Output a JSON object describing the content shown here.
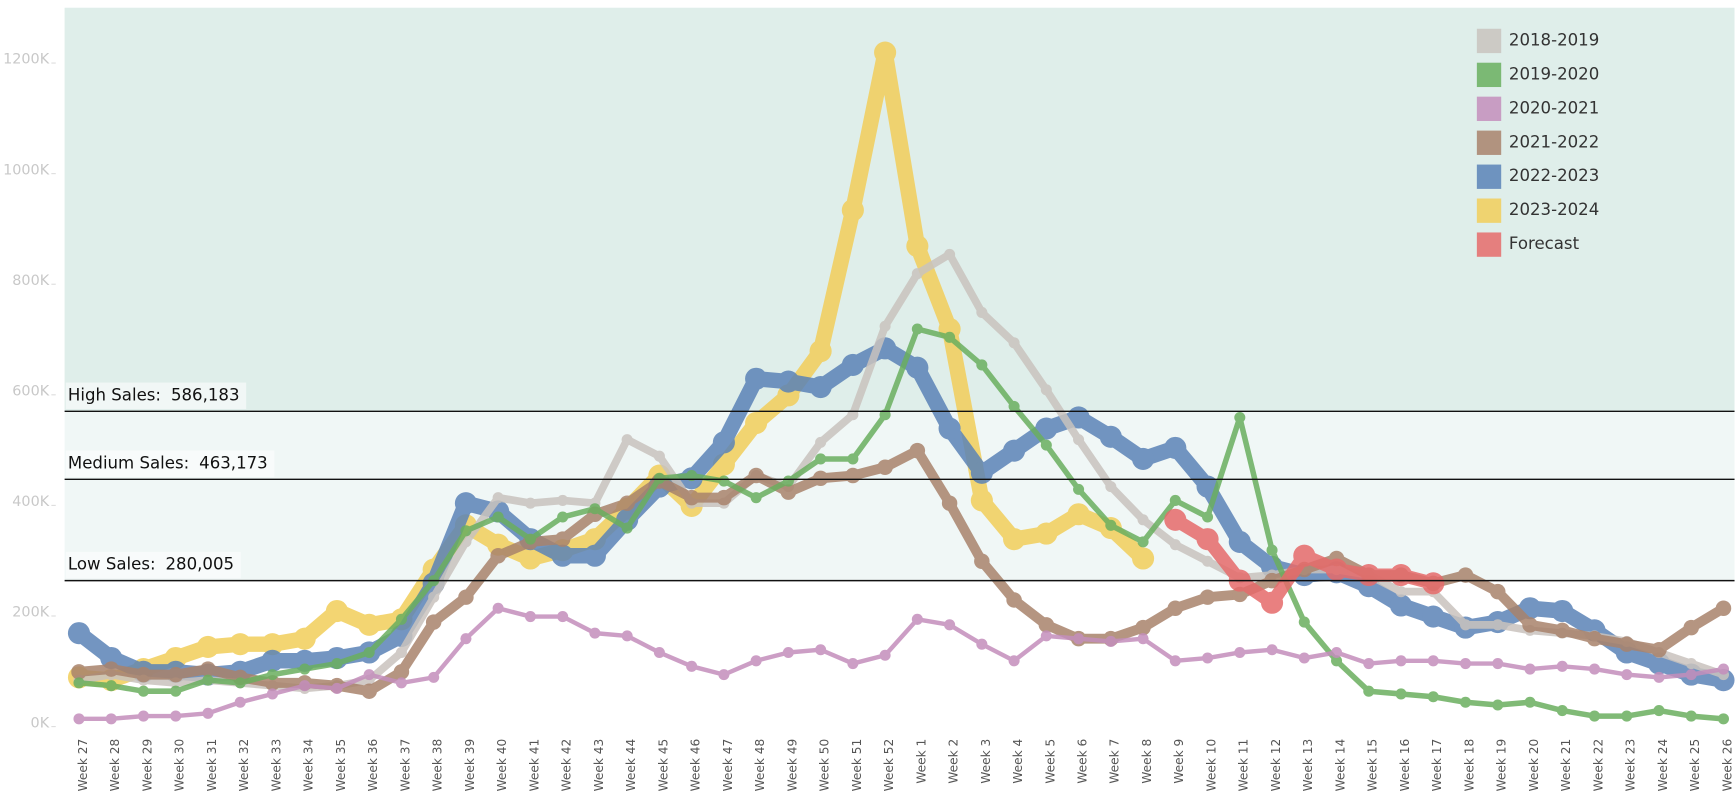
{
  "chart_data": {
    "type": "line",
    "categories": [
      "Week 27",
      "Week 28",
      "Week 29",
      "Week 30",
      "Week 31",
      "Week 32",
      "Week 33",
      "Week 34",
      "Week 35",
      "Week 36",
      "Week 37",
      "Week 38",
      "Week 39",
      "Week 40",
      "Week 41",
      "Week 42",
      "Week 43",
      "Week 44",
      "Week 45",
      "Week 46",
      "Week 47",
      "Week 48",
      "Week 49",
      "Week 50",
      "Week 51",
      "Week 52",
      "Week 1",
      "Week 2",
      "Week 3",
      "Week 4",
      "Week 5",
      "Week 6",
      "Week 7",
      "Week 8",
      "Week 9",
      "Week 10",
      "Week 11",
      "Week 12",
      "Week 13",
      "Week 14",
      "Week 15",
      "Week 16",
      "Week 17",
      "Week 18",
      "Week 19",
      "Week 20",
      "Week 21",
      "Week 22",
      "Week 23",
      "Week 24",
      "Week 25",
      "Week 26"
    ],
    "series": [
      {
        "name": "2018-2019",
        "color": "#c9c3be",
        "values": [
          100000,
          110000,
          100000,
          95000,
          100000,
          95000,
          90000,
          85000,
          90000,
          100000,
          150000,
          250000,
          350000,
          430000,
          420000,
          425000,
          420000,
          535000,
          505000,
          420000,
          420000,
          470000,
          450000,
          530000,
          580000,
          740000,
          835000,
          870000,
          765000,
          710000,
          625000,
          535000,
          450000,
          390000,
          345000,
          315000,
          285000,
          290000,
          300000,
          300000,
          290000,
          260000,
          260000,
          200000,
          200000,
          190000,
          185000,
          180000,
          170000,
          150000,
          130000,
          110000
        ]
      },
      {
        "name": "2019-2020",
        "color": "#6aaf5f",
        "values": [
          95000,
          90000,
          80000,
          80000,
          100000,
          95000,
          110000,
          120000,
          130000,
          150000,
          210000,
          280000,
          370000,
          395000,
          355000,
          395000,
          410000,
          375000,
          465000,
          470000,
          460000,
          430000,
          460000,
          500000,
          500000,
          580000,
          735000,
          720000,
          670000,
          595000,
          525000,
          445000,
          380000,
          350000,
          425000,
          395000,
          575000,
          335000,
          205000,
          135000,
          80000,
          75000,
          70000,
          60000,
          55000,
          60000,
          45000,
          35000,
          35000,
          45000,
          35000,
          30000
        ]
      },
      {
        "name": "2020-2021",
        "color": "#c48ebc",
        "values": [
          30000,
          30000,
          35000,
          35000,
          40000,
          60000,
          75000,
          90000,
          85000,
          110000,
          95000,
          105000,
          175000,
          230000,
          215000,
          215000,
          185000,
          180000,
          150000,
          125000,
          110000,
          135000,
          150000,
          155000,
          130000,
          145000,
          210000,
          200000,
          165000,
          135000,
          180000,
          175000,
          170000,
          175000,
          135000,
          140000,
          150000,
          155000,
          140000,
          150000,
          130000,
          135000,
          135000,
          130000,
          130000,
          120000,
          125000,
          120000,
          110000,
          105000,
          110000,
          120000
        ]
      },
      {
        "name": "2021-2022",
        "color": "#a9836c",
        "values": [
          115000,
          120000,
          110000,
          110000,
          120000,
          105000,
          95000,
          95000,
          90000,
          80000,
          115000,
          205000,
          250000,
          325000,
          350000,
          355000,
          400000,
          420000,
          460000,
          430000,
          430000,
          470000,
          440000,
          465000,
          470000,
          485000,
          515000,
          420000,
          315000,
          245000,
          200000,
          175000,
          175000,
          195000,
          230000,
          250000,
          255000,
          280000,
          300000,
          320000,
          290000,
          290000,
          275000,
          290000,
          260000,
          200000,
          190000,
          175000,
          165000,
          155000,
          195000,
          230000
        ]
      },
      {
        "name": "2022-2023",
        "color": "#5b83b7",
        "values": [
          185000,
          140000,
          115000,
          115000,
          110000,
          115000,
          135000,
          135000,
          140000,
          150000,
          180000,
          275000,
          420000,
          405000,
          355000,
          325000,
          325000,
          390000,
          450000,
          465000,
          530000,
          645000,
          640000,
          630000,
          670000,
          700000,
          665000,
          555000,
          475000,
          515000,
          555000,
          575000,
          540000,
          500000,
          520000,
          450000,
          350000,
          305000,
          290000,
          295000,
          270000,
          235000,
          215000,
          195000,
          205000,
          230000,
          225000,
          190000,
          150000,
          130000,
          110000,
          100000
        ]
      },
      {
        "name": "2023-2024",
        "color": "#f2ce5a",
        "values": [
          105000,
          100000,
          120000,
          140000,
          160000,
          165000,
          165000,
          175000,
          225000,
          200000,
          210000,
          300000,
          380000,
          345000,
          320000,
          335000,
          355000,
          410000,
          470000,
          415000,
          490000,
          565000,
          615000,
          695000,
          950000,
          1235000,
          885000,
          735000,
          425000,
          355000,
          365000,
          400000,
          375000,
          320000,
          null,
          null,
          null,
          null,
          null,
          null,
          null,
          null,
          null,
          null,
          null,
          null,
          null,
          null,
          null,
          null,
          null,
          null
        ]
      },
      {
        "name": "Forecast",
        "color": "#e66b6b",
        "values": [
          null,
          null,
          null,
          null,
          null,
          null,
          null,
          null,
          null,
          null,
          null,
          null,
          null,
          null,
          null,
          null,
          null,
          null,
          null,
          null,
          null,
          null,
          null,
          null,
          null,
          null,
          null,
          null,
          null,
          null,
          null,
          null,
          null,
          null,
          390000,
          355000,
          280000,
          240000,
          325000,
          300000,
          290000,
          290000,
          275000,
          null,
          null,
          null,
          null,
          null,
          null,
          null,
          null,
          null
        ]
      }
    ],
    "ylim": [
      -30000,
      1316000
    ],
    "yticks": [
      {
        "value": 0,
        "label": "0K"
      },
      {
        "value": 200000,
        "label": "200K"
      },
      {
        "value": 400000,
        "label": "400K"
      },
      {
        "value": 600000,
        "label": "600K"
      },
      {
        "value": 800000,
        "label": "800K"
      },
      {
        "value": 1000000,
        "label": "1000K"
      },
      {
        "value": 1200000,
        "label": "1200K"
      }
    ],
    "reference_lines": [
      {
        "label": "High Sales:",
        "value": 586183,
        "value_label": "586,183",
        "band_color": "#dfeeea"
      },
      {
        "label": "Medium Sales:",
        "value": 463173,
        "value_label": "463,173",
        "band_color": "#f0f7f6"
      },
      {
        "label": "Low Sales:",
        "value": 280005,
        "value_label": "280,005",
        "band_color": "#f0f7f6"
      }
    ],
    "legend": "top-right"
  }
}
